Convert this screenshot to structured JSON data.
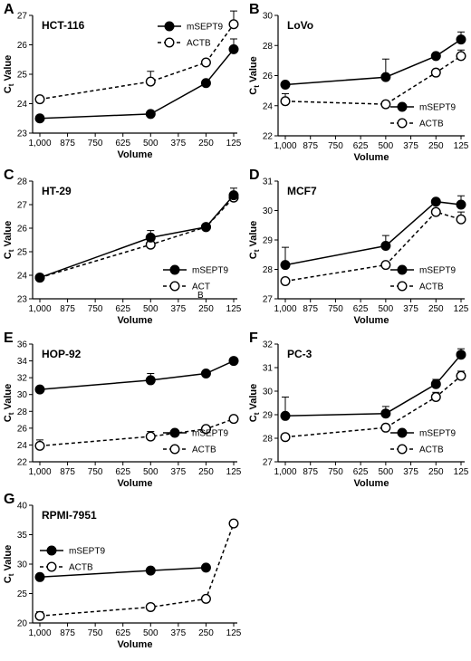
{
  "figure": {
    "x_tick_labels": [
      "1,000",
      "875",
      "750",
      "625",
      "500",
      "375",
      "250",
      "125"
    ],
    "x_label": "Volume",
    "y_label_main": "C",
    "y_label_sub": "t",
    "y_label_rest": " Value"
  },
  "chart_data": [
    {
      "panel": "A",
      "type": "line",
      "cell_line": "HCT-116",
      "x": [
        1000,
        500,
        250,
        125
      ],
      "xlim": [
        1000,
        125
      ],
      "ylim": [
        23,
        27
      ],
      "yticks": [
        23,
        24,
        25,
        26,
        27
      ],
      "legend": "top-right",
      "series": [
        {
          "name": "mSEPT9",
          "style": "solid",
          "marker": "filled-circle",
          "values": [
            23.5,
            23.65,
            24.7,
            25.85
          ],
          "err": [
            0,
            0,
            0,
            0.35
          ]
        },
        {
          "name": "ACTB",
          "style": "dashed",
          "marker": "open-circle",
          "values": [
            24.15,
            24.75,
            25.4,
            26.7
          ],
          "err": [
            0,
            0.35,
            0,
            0.45
          ]
        }
      ]
    },
    {
      "panel": "B",
      "type": "line",
      "cell_line": "LoVo",
      "x": [
        1000,
        500,
        250,
        125
      ],
      "xlim": [
        1000,
        125
      ],
      "ylim": [
        22,
        30
      ],
      "yticks": [
        22,
        24,
        26,
        28,
        30
      ],
      "legend": "bottom-right",
      "series": [
        {
          "name": "mSEPT9",
          "style": "solid",
          "marker": "filled-circle",
          "values": [
            25.4,
            25.9,
            27.3,
            28.4
          ],
          "err": [
            0,
            1.2,
            0,
            0.5
          ]
        },
        {
          "name": "ACTB",
          "style": "dashed",
          "marker": "open-circle",
          "values": [
            24.3,
            24.1,
            26.2,
            27.3
          ],
          "err": [
            0.5,
            0,
            0,
            0.4
          ]
        }
      ]
    },
    {
      "panel": "C",
      "type": "line",
      "cell_line": "HT-29",
      "x": [
        1000,
        500,
        250,
        125
      ],
      "xlim": [
        1000,
        125
      ],
      "ylim": [
        23,
        28
      ],
      "yticks": [
        23,
        24,
        25,
        26,
        27,
        28
      ],
      "legend": "bottom-right",
      "series": [
        {
          "name": "mSEPT9",
          "style": "solid",
          "marker": "filled-circle",
          "values": [
            23.9,
            25.6,
            26.05,
            27.4
          ],
          "err": [
            0,
            0.3,
            0,
            0.3
          ]
        },
        {
          "name": "ACT",
          "name_line2": "B",
          "style": "dashed",
          "marker": "open-circle",
          "values": [
            23.9,
            25.3,
            26.05,
            27.3
          ],
          "err": [
            0,
            0,
            0,
            0
          ]
        }
      ]
    },
    {
      "panel": "D",
      "type": "line",
      "cell_line": "MCF7",
      "x": [
        1000,
        500,
        250,
        125
      ],
      "xlim": [
        1000,
        125
      ],
      "ylim": [
        27,
        31
      ],
      "yticks": [
        27,
        28,
        29,
        30,
        31
      ],
      "legend": "bottom-right",
      "series": [
        {
          "name": "mSEPT9",
          "style": "solid",
          "marker": "filled-circle",
          "values": [
            28.15,
            28.8,
            30.3,
            30.2
          ],
          "err": [
            0.6,
            0.35,
            0,
            0.3
          ]
        },
        {
          "name": "ACTB",
          "style": "dashed",
          "marker": "open-circle",
          "values": [
            27.6,
            28.15,
            29.95,
            29.7
          ],
          "err": [
            0,
            0,
            0,
            0.25
          ]
        }
      ]
    },
    {
      "panel": "E",
      "type": "line",
      "cell_line": "HOP-92",
      "x": [
        1000,
        500,
        250,
        125
      ],
      "xlim": [
        1000,
        125
      ],
      "ylim": [
        22,
        36
      ],
      "yticks": [
        22,
        24,
        26,
        28,
        30,
        32,
        34,
        36
      ],
      "legend": "bottom-right",
      "series": [
        {
          "name": "mSEPT9",
          "style": "solid",
          "marker": "filled-circle",
          "values": [
            30.6,
            31.7,
            32.5,
            34.0
          ],
          "err": [
            0,
            0.8,
            0,
            0
          ]
        },
        {
          "name": "ACTB",
          "style": "dashed",
          "marker": "open-circle",
          "values": [
            23.9,
            25.0,
            25.9,
            27.1
          ],
          "err": [
            0.7,
            0.6,
            0,
            0
          ]
        }
      ]
    },
    {
      "panel": "F",
      "type": "line",
      "cell_line": "PC-3",
      "x": [
        1000,
        500,
        250,
        125
      ],
      "xlim": [
        1000,
        125
      ],
      "ylim": [
        27,
        32
      ],
      "yticks": [
        27,
        28,
        29,
        30,
        31,
        32
      ],
      "legend": "bottom-right",
      "series": [
        {
          "name": "mSEPT9",
          "style": "solid",
          "marker": "filled-circle",
          "values": [
            28.95,
            29.05,
            30.3,
            31.55
          ],
          "err": [
            0.8,
            0.3,
            0.2,
            0.25
          ]
        },
        {
          "name": "ACTB",
          "style": "dashed",
          "marker": "open-circle",
          "values": [
            28.05,
            28.45,
            29.75,
            30.65
          ],
          "err": [
            0,
            0,
            0.2,
            0.2
          ]
        }
      ]
    },
    {
      "panel": "G",
      "type": "line",
      "cell_line": "RPMI-7951",
      "x": [
        1000,
        500,
        250,
        125
      ],
      "xlim": [
        1000,
        125
      ],
      "ylim": [
        20,
        40
      ],
      "yticks": [
        20,
        25,
        30,
        35,
        40
      ],
      "legend": "top-left",
      "series": [
        {
          "name": "mSEPT9",
          "style": "solid",
          "marker": "filled-circle",
          "x": [
            1000,
            500,
            250
          ],
          "values": [
            27.8,
            28.9,
            29.4
          ],
          "err": [
            0,
            0,
            0
          ]
        },
        {
          "name": "ACTB",
          "style": "dashed",
          "marker": "open-circle",
          "values": [
            21.2,
            22.7,
            24.1,
            36.9
          ],
          "err": [
            0.7,
            0,
            0,
            0
          ]
        }
      ]
    }
  ]
}
